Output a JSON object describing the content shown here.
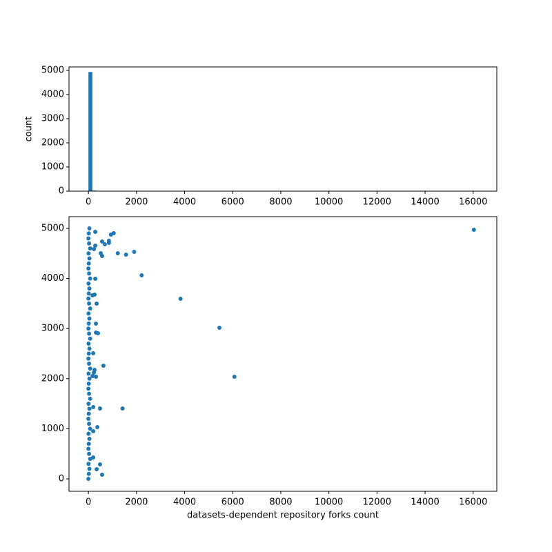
{
  "chart_data": [
    {
      "type": "histogram",
      "color": "#1f77b4",
      "ylabel": "count",
      "xlim": [
        -809,
        16983
      ],
      "ylim": [
        0,
        5143
      ],
      "xticks": [
        0,
        2000,
        4000,
        6000,
        8000,
        10000,
        12000,
        14000,
        16000
      ],
      "yticks": [
        0,
        1000,
        2000,
        3000,
        4000,
        5000
      ],
      "bins": [
        0,
        161.7,
        323.4,
        485.1,
        646.8,
        808.5,
        970.2,
        1131.9,
        1293.6,
        1455.3,
        1617,
        1778.7,
        1940.4,
        2102.1,
        2263.8,
        2425.5,
        2587.2,
        2748.9,
        2910.6,
        3072.3,
        3234,
        3395.7,
        3557.4,
        3719.1,
        3880.8,
        4042.5,
        4204.2,
        4365.9,
        4527.6,
        4689.3,
        4851,
        5012.7,
        5174.4,
        5336.1,
        5497.8,
        5659.5,
        5821.2,
        5982.9,
        6144.6,
        6306.3,
        6468,
        6629.7,
        6791.4,
        6953.1,
        7114.8,
        7276.5,
        7438.2,
        7599.9,
        7761.6,
        7923.3,
        8085,
        8246.7,
        8408.4,
        8570.1,
        8731.8,
        8893.5,
        9055.2,
        9216.9,
        9378.6,
        9540.3,
        9702,
        9863.7,
        10025.4,
        10187.1,
        10348.8,
        10510.5,
        10672.2,
        10833.9,
        10995.6,
        11157.3,
        11319,
        11480.7,
        11642.4,
        11804.1,
        11965.8,
        12127.5,
        12289.2,
        12450.9,
        12612.6,
        12774.3,
        12936,
        13097.7,
        13259.4,
        13421.1,
        13582.8,
        13744.5,
        13906.2,
        14067.9,
        14229.6,
        14391.3,
        14553,
        14714.7,
        14876.4,
        15038.1,
        15199.8,
        15361.5,
        15523.2,
        15684.9,
        15846.6,
        16008.3,
        16170
      ],
      "counts": [
        4935,
        25,
        12,
        6,
        4,
        2,
        3,
        1,
        1,
        1,
        0,
        1,
        0,
        1,
        1,
        0,
        0,
        0,
        0,
        0,
        0,
        0,
        0,
        1,
        0,
        0,
        0,
        0,
        0,
        0,
        0,
        0,
        0,
        0,
        1,
        0,
        0,
        1,
        0,
        0,
        0,
        0,
        0,
        0,
        0,
        0,
        0,
        0,
        0,
        0,
        0,
        0,
        0,
        0,
        0,
        0,
        0,
        0,
        0,
        0,
        0,
        0,
        0,
        0,
        0,
        0,
        0,
        0,
        0,
        0,
        0,
        0,
        0,
        0,
        0,
        0,
        0,
        0,
        0,
        0,
        0,
        0,
        0,
        0,
        0,
        0,
        0,
        0,
        0,
        0,
        0,
        0,
        0,
        0,
        0,
        0,
        0,
        0,
        0,
        1
      ]
    },
    {
      "type": "scatter",
      "color": "#1f77b4",
      "xlabel": "datasets-dependent repository forks count",
      "xlim": [
        -809,
        16983
      ],
      "ylim": [
        -248,
        5234
      ],
      "xticks": [
        0,
        2000,
        4000,
        6000,
        8000,
        10000,
        12000,
        14000,
        16000
      ],
      "yticks": [
        0,
        1000,
        2000,
        3000,
        4000,
        5000
      ],
      "x": [
        16030,
        6071,
        5447,
        3830,
        2213,
        1418,
        1901,
        1560,
        1220,
        1050,
        936,
        851,
        851,
        681,
        567,
        567,
        511,
        567,
        482,
        482,
        369,
        624,
        312,
        397,
        312,
        340,
        284,
        284,
        255,
        170,
        227,
        255,
        312,
        199,
        199,
        199,
        199,
        340,
        227,
        284,
        170,
        0,
        15,
        40,
        5,
        70,
        25,
        0,
        15,
        40,
        5,
        70,
        25,
        0,
        15,
        40,
        5,
        70,
        25,
        0,
        15,
        40,
        5,
        70,
        25,
        0,
        15,
        40,
        5,
        70,
        25,
        0,
        15,
        40,
        5,
        70,
        25,
        0,
        15,
        40,
        5,
        70,
        25,
        0,
        15,
        40,
        5,
        70,
        25,
        0,
        15,
        40
      ],
      "y": [
        4972,
        2039,
        3017,
        3595,
        4063,
        1405,
        4532,
        4477,
        4504,
        4904,
        4876,
        4711,
        4752,
        4683,
        4738,
        4449,
        4504,
        83,
        289,
        1405,
        1033,
        2259,
        2920,
        2906,
        3099,
        3499,
        3994,
        4931,
        3678,
        3664,
        2121,
        2176,
        2039,
        2507,
        950,
        1433,
        427,
        193,
        4587,
        4656,
        2052,
        0,
        100,
        200,
        300,
        400,
        500,
        600,
        700,
        800,
        900,
        1000,
        1100,
        1200,
        1300,
        1400,
        1500,
        1600,
        1700,
        1800,
        1900,
        2000,
        2100,
        2200,
        2300,
        2400,
        2500,
        2600,
        2700,
        2800,
        2900,
        3000,
        3100,
        3200,
        3300,
        3400,
        3500,
        3600,
        3700,
        3800,
        3900,
        4000,
        4100,
        4200,
        4300,
        4400,
        4500,
        4600,
        4700,
        4800,
        4900,
        5000
      ]
    }
  ]
}
